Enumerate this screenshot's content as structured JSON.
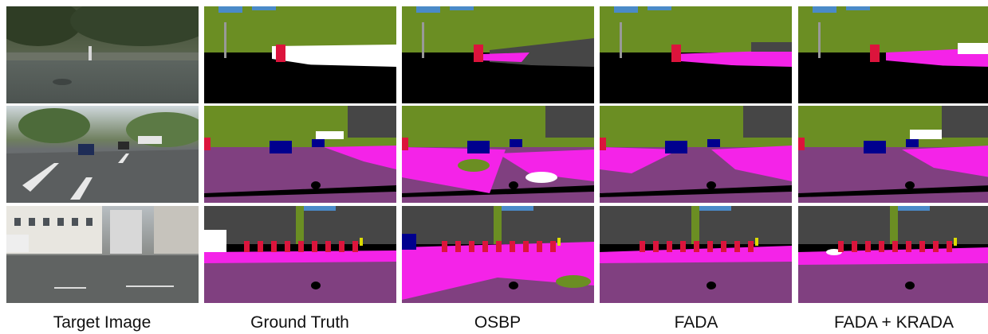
{
  "figure": {
    "columns": [
      {
        "caption": "Target Image"
      },
      {
        "caption": "Ground Truth"
      },
      {
        "caption": "OSBP"
      },
      {
        "caption": "FADA"
      },
      {
        "caption": "FADA + KRADA"
      }
    ],
    "rows": [
      {
        "scene": "courtyard"
      },
      {
        "scene": "street-cars"
      },
      {
        "scene": "intersection-buildings"
      }
    ]
  },
  "palette": {
    "sky": "#4a8ac8",
    "vegetation": "#6b8e23",
    "building": "#464646",
    "road": "#804080",
    "sidewalk": "#f423e8",
    "car": "#00008e",
    "person": "#dc143c",
    "unlabeled": "#000000",
    "white": "#ffffff",
    "pole": "#999999",
    "sign": "#dcdc00"
  }
}
